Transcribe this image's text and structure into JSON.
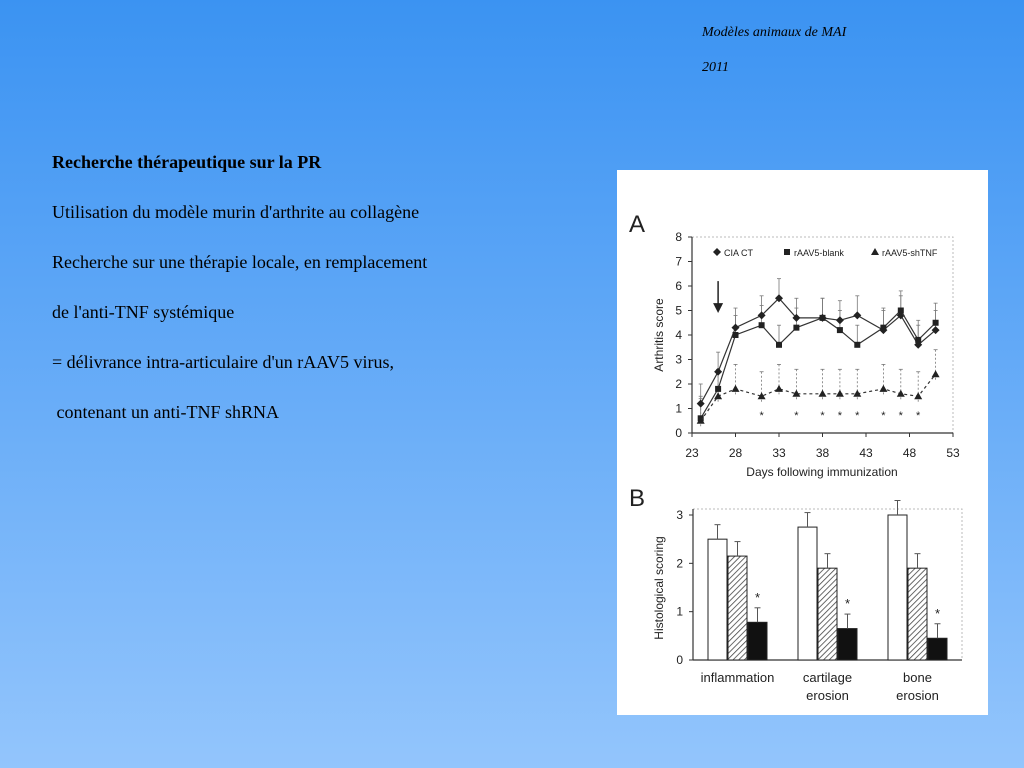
{
  "header": {
    "line1": "Modèles animaux de MAI",
    "line2": "2011"
  },
  "text": {
    "title": "Recherche thérapeutique sur la PR",
    "lines": [
      "Utilisation du modèle murin d'arthrite au collagène",
      "Recherche sur une thérapie locale, en remplacement",
      "de l'anti-TNF systémique",
      "= délivrance intra-articulaire d'un rAAV5 virus,",
      " contenant un anti-TNF shRNA"
    ]
  },
  "colors": {
    "background_top": "#3b93f2",
    "background_bottom": "#93c5fc",
    "figure_background": "#ffffff"
  },
  "chart_data": [
    {
      "panel_label": "A",
      "type": "line",
      "title": "",
      "xlabel": "Days following immunization",
      "ylabel": "Arthritis score",
      "xlim": [
        23,
        53
      ],
      "ylim": [
        0,
        8
      ],
      "x_ticks": [
        23,
        28,
        33,
        38,
        43,
        48,
        53
      ],
      "y_ticks": [
        0,
        1,
        2,
        3,
        4,
        5,
        6,
        7,
        8
      ],
      "legend_position": "top",
      "annotations": {
        "arrow_at_x": 26,
        "significance_mark": "*"
      },
      "series": [
        {
          "name": "CIA CT",
          "marker": "diamond",
          "line": "solid",
          "x": [
            24,
            26,
            28,
            31,
            33,
            35,
            38,
            40,
            42,
            45,
            47,
            49,
            51
          ],
          "y": [
            1.2,
            2.5,
            4.3,
            4.8,
            5.5,
            4.7,
            4.7,
            4.6,
            4.8,
            4.2,
            4.8,
            3.6,
            4.2
          ]
        },
        {
          "name": "rAAV5-blank",
          "marker": "square",
          "line": "solid",
          "x": [
            24,
            26,
            28,
            31,
            33,
            35,
            38,
            40,
            42,
            45,
            47,
            49,
            51
          ],
          "y": [
            0.6,
            1.8,
            4.0,
            4.4,
            3.6,
            4.3,
            4.7,
            4.2,
            3.6,
            4.3,
            5.0,
            3.8,
            4.5
          ]
        },
        {
          "name": "rAAV5-shTNF",
          "marker": "triangle",
          "line": "dashed",
          "x": [
            24,
            26,
            28,
            31,
            33,
            35,
            38,
            40,
            42,
            45,
            47,
            49,
            51
          ],
          "y": [
            0.5,
            1.5,
            1.8,
            1.5,
            1.8,
            1.6,
            1.6,
            1.6,
            1.6,
            1.8,
            1.6,
            1.5,
            2.4
          ]
        }
      ],
      "significant_x": [
        31,
        35,
        38,
        40,
        42,
        45,
        47,
        49
      ]
    },
    {
      "panel_label": "B",
      "type": "bar",
      "title": "",
      "xlabel": "",
      "ylabel": "Histological scoring",
      "ylim": [
        0,
        3
      ],
      "y_ticks": [
        0,
        1,
        2,
        3
      ],
      "categories": [
        "inflammation",
        "cartilage\nerosion",
        "bone\nerosion"
      ],
      "series": [
        {
          "fill": "white",
          "values": [
            2.5,
            2.75,
            3.0
          ]
        },
        {
          "fill": "hatched",
          "values": [
            2.15,
            1.9,
            1.9
          ]
        },
        {
          "fill": "black",
          "values": [
            0.78,
            0.65,
            0.45
          ]
        }
      ],
      "significance_mark": "*"
    }
  ]
}
